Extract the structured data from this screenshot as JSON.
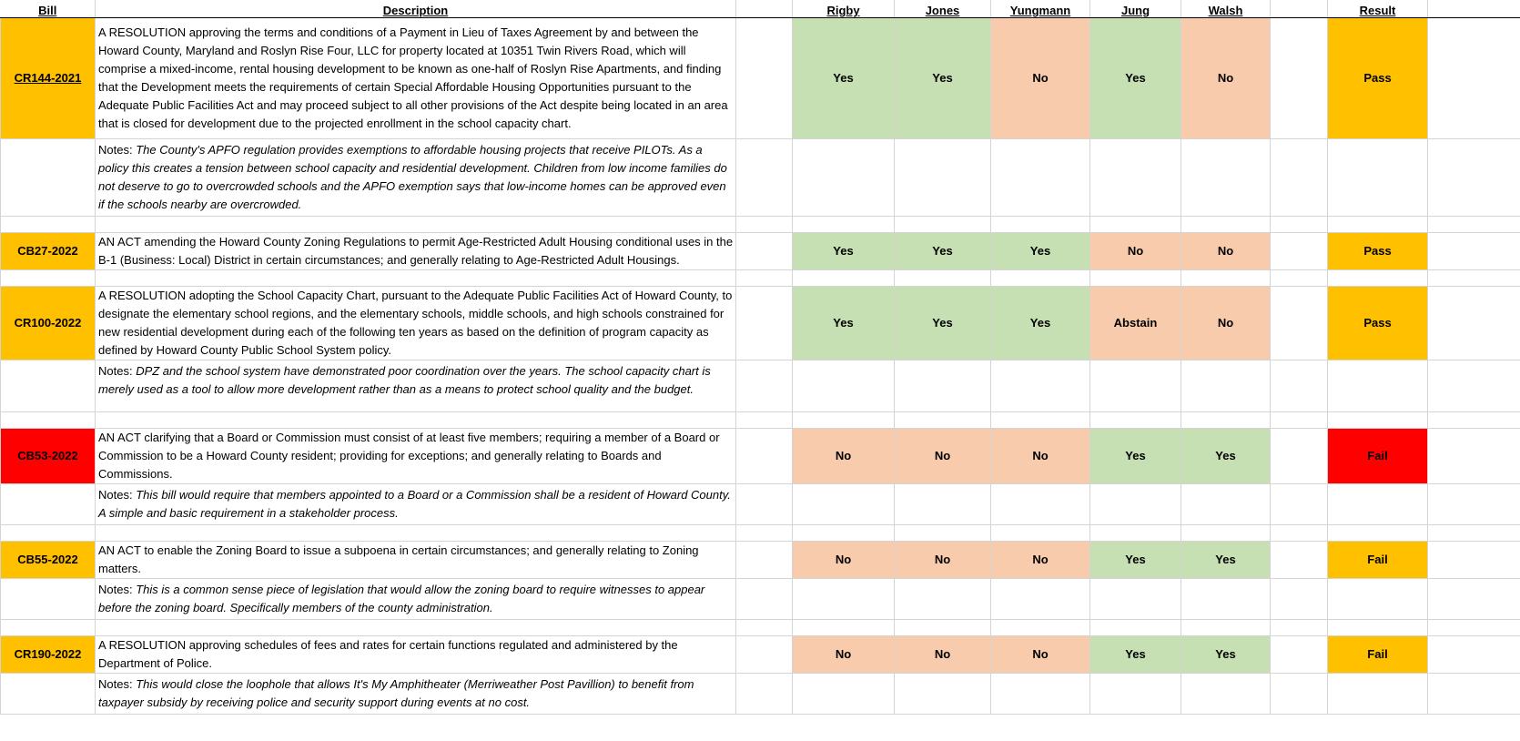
{
  "headers": {
    "bill": "Bill",
    "description": "Description",
    "rigby": "Rigby",
    "jones": "Jones",
    "yungmann": "Yungmann",
    "jung": "Jung",
    "walsh": "Walsh",
    "result": "Result"
  },
  "notes_prefix": "Notes: ",
  "bills": [
    {
      "id": "CR144-2021",
      "description": "A RESOLUTION approving the terms and conditions of a Payment in Lieu of Taxes Agreement by and between the Howard County, Maryland and Roslyn Rise Four, LLC for property located at 10351 Twin Rivers Road, which will comprise a mixed-income, rental housing development to be known as one-half of Roslyn Rise Apartments, and finding that the Development meets the requirements of certain Special Affordable Housing Opportunities pursuant to the Adequate Public Facilities Act and may proceed subject to all other provisions of the Act despite being located in an area that is closed for development due to the projected enrollment in the school capacity chart.",
      "votes": [
        "Yes",
        "Yes",
        "No",
        "Yes",
        "No"
      ],
      "result": "Pass",
      "result_color": "#ffc000",
      "notes": "The County's APFO regulation provides exemptions to affordable housing projects that receive PILOTs. As a policy this creates a tension between school capacity and residential development. Children from low income families do not deserve to go to overcrowded schools and the APFO exemption says that low-income homes can be approved even if the schools nearby are overcrowded."
    },
    {
      "id": "CB27-2022",
      "description": "AN ACT amending the Howard County Zoning Regulations to permit Age-Restricted Adult Housing conditional uses in the B-1 (Business: Local) District in certain circumstances; and generally relating to Age-Restricted Adult Housings.",
      "votes": [
        "Yes",
        "Yes",
        "Yes",
        "No",
        "No"
      ],
      "result": "Pass",
      "result_color": "#ffc000",
      "notes": ""
    },
    {
      "id": "CR100-2022",
      "description": "A RESOLUTION adopting the School Capacity Chart, pursuant to the Adequate Public Facilities Act of Howard County, to designate the elementary school regions, and the elementary schools, middle schools, and high schools constrained for new residential development during each of the following ten years as based on the definition of program capacity as defined by Howard County Public School System policy.",
      "votes": [
        "Yes",
        "Yes",
        "Yes",
        "Abstain",
        "No"
      ],
      "result": "Pass",
      "result_color": "#ffc000",
      "notes": "DPZ and the school system have demonstrated poor coordination over the years. The school capacity chart is merely used as a tool to allow more development rather than as a means to protect school quality and the budget."
    },
    {
      "id": "CB53-2022",
      "description": "AN ACT clarifying that a Board or Commission must consist of at least five members; requiring a member of a Board or Commission to be a Howard County resident; providing for exceptions; and generally relating to Boards and Commissions.",
      "votes": [
        "No",
        "No",
        "No",
        "Yes",
        "Yes"
      ],
      "result": "Fail",
      "result_color": "#ff0000",
      "notes": "This bill would require that members appointed to a Board or a Commission shall be a resident of Howard County. A simple and basic requirement in a stakeholder process."
    },
    {
      "id": "CB55-2022",
      "description": "AN ACT to enable the Zoning Board to issue a subpoena in certain circumstances; and generally relating to Zoning matters.",
      "votes": [
        "No",
        "No",
        "No",
        "Yes",
        "Yes"
      ],
      "result": "Fail",
      "result_color": "#ffc000",
      "notes": "This is a common sense piece of legislation that would allow the zoning board to require witnesses to appear before the zoning board. Specifically members of the county administration."
    },
    {
      "id": "CR190-2022",
      "description": "A RESOLUTION approving schedules of fees and rates for certain functions regulated and administered by the Department of Police.",
      "votes": [
        "No",
        "No",
        "No",
        "Yes",
        "Yes"
      ],
      "result": "Fail",
      "result_color": "#ffc000",
      "notes": "This would close the loophole that allows It's My Amphitheater (Merriweather Post Pavillion) to benefit from taxpayer subsidy by receiving police and security support during events at no cost."
    }
  ],
  "colors": {
    "yes": "#c6e0b4",
    "no": "#f8cbad",
    "pass": "#ffc000",
    "fail_red": "#ff0000"
  }
}
